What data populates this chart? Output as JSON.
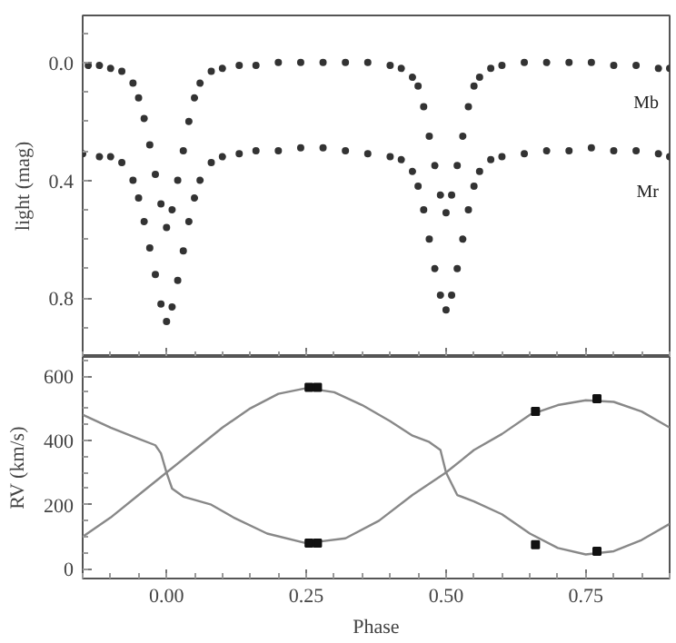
{
  "chart_data": [
    {
      "type": "scatter",
      "ylabel": "light (mag)",
      "xlim": [
        -0.15,
        0.9
      ],
      "ylim": [
        1.0,
        -0.16
      ],
      "xticks": [
        0,
        0.25,
        0.5,
        0.75
      ],
      "yticks": [
        {
          "value": 0,
          "label": "0.0"
        },
        0.4,
        0.8
      ],
      "tick_labels": "y",
      "legend": false,
      "grid": false,
      "marker": "circle",
      "series": [
        {
          "name": "Mb",
          "color": "#333333",
          "x": [
            -0.14,
            -0.12,
            -0.1,
            -0.08,
            -0.06,
            -0.05,
            -0.04,
            -0.03,
            -0.02,
            -0.01,
            0,
            0.01,
            0.02,
            0.03,
            0.04,
            0.05,
            0.06,
            0.08,
            0.1,
            0.13,
            0.16,
            0.2,
            0.24,
            0.28,
            0.32,
            0.36,
            0.4,
            0.42,
            0.44,
            0.45,
            0.46,
            0.47,
            0.48,
            0.49,
            0.5,
            0.51,
            0.52,
            0.53,
            0.54,
            0.55,
            0.56,
            0.58,
            0.6,
            0.64,
            0.68,
            0.72,
            0.76,
            0.8,
            0.84,
            0.88,
            0.9
          ],
          "values": [
            0.01,
            0.01,
            0.02,
            0.03,
            0.07,
            0.12,
            0.19,
            0.28,
            0.38,
            0.48,
            0.56,
            0.5,
            0.4,
            0.3,
            0.2,
            0.12,
            0.07,
            0.03,
            0.02,
            0.01,
            0.01,
            0.0,
            0.0,
            0.0,
            0.0,
            0.0,
            0.01,
            0.02,
            0.05,
            0.08,
            0.15,
            0.25,
            0.35,
            0.45,
            0.51,
            0.45,
            0.35,
            0.25,
            0.15,
            0.08,
            0.05,
            0.02,
            0.01,
            0.0,
            0.0,
            0.0,
            0.0,
            0.01,
            0.01,
            0.02,
            0.02
          ]
        },
        {
          "name": "Mr",
          "color": "#333333",
          "x": [
            -0.15,
            -0.12,
            -0.1,
            -0.08,
            -0.06,
            -0.05,
            -0.04,
            -0.03,
            -0.02,
            -0.01,
            0,
            0.01,
            0.02,
            0.03,
            0.04,
            0.05,
            0.06,
            0.08,
            0.1,
            0.13,
            0.16,
            0.2,
            0.24,
            0.28,
            0.32,
            0.36,
            0.4,
            0.42,
            0.44,
            0.45,
            0.46,
            0.47,
            0.48,
            0.49,
            0.5,
            0.51,
            0.52,
            0.53,
            0.54,
            0.55,
            0.56,
            0.58,
            0.6,
            0.64,
            0.68,
            0.72,
            0.76,
            0.8,
            0.84,
            0.88,
            0.9
          ],
          "values": [
            0.31,
            0.32,
            0.32,
            0.34,
            0.4,
            0.46,
            0.54,
            0.63,
            0.72,
            0.82,
            0.88,
            0.83,
            0.74,
            0.64,
            0.54,
            0.46,
            0.4,
            0.34,
            0.32,
            0.31,
            0.3,
            0.3,
            0.29,
            0.29,
            0.3,
            0.31,
            0.32,
            0.33,
            0.37,
            0.42,
            0.5,
            0.6,
            0.7,
            0.79,
            0.84,
            0.79,
            0.7,
            0.6,
            0.5,
            0.42,
            0.37,
            0.33,
            0.32,
            0.31,
            0.3,
            0.3,
            0.29,
            0.3,
            0.3,
            0.31,
            0.32
          ]
        }
      ]
    },
    {
      "type": "line",
      "xlabel": "Phase",
      "ylabel": "RV (km/s)",
      "xlim": [
        -0.15,
        0.9
      ],
      "ylim": [
        -30,
        660
      ],
      "xticks": [
        {
          "value": 0,
          "label": "0.00"
        },
        0.25,
        {
          "value": 0.5,
          "label": "0.50"
        },
        0.75
      ],
      "yticks": [
        0,
        200,
        400,
        600
      ],
      "grid": false,
      "series": [
        {
          "color": "#888888",
          "x": [
            -0.15,
            -0.1,
            -0.05,
            0,
            0.05,
            0.1,
            0.15,
            0.2,
            0.25,
            0.3,
            0.35,
            0.4,
            0.44,
            0.47,
            0.49,
            0.5,
            0.52,
            0.55,
            0.6,
            0.65,
            0.7,
            0.75,
            0.8,
            0.85,
            0.9
          ],
          "values": [
            100,
            160,
            230,
            300,
            370,
            440,
            500,
            545,
            563,
            550,
            510,
            460,
            415,
            395,
            370,
            300,
            230,
            210,
            170,
            110,
            65,
            45,
            55,
            90,
            140
          ]
        },
        {
          "color": "#888888",
          "x": [
            -0.15,
            -0.1,
            -0.05,
            -0.02,
            -0.01,
            0,
            0.01,
            0.03,
            0.08,
            0.12,
            0.18,
            0.25,
            0.32,
            0.38,
            0.44,
            0.5,
            0.55,
            0.6,
            0.65,
            0.7,
            0.75,
            0.8,
            0.85,
            0.9
          ],
          "values": [
            480,
            440,
            405,
            385,
            360,
            300,
            250,
            225,
            200,
            160,
            110,
            80,
            95,
            150,
            230,
            300,
            370,
            420,
            480,
            510,
            525,
            520,
            490,
            440
          ]
        },
        {
          "type": "scatter",
          "marker": "square",
          "color": "#111111",
          "x": [
            0.255,
            0.27,
            0.255,
            0.27,
            0.66,
            0.66,
            0.77,
            0.77
          ],
          "values": [
            80,
            80,
            565,
            565,
            490,
            75,
            530,
            55
          ]
        }
      ]
    }
  ]
}
